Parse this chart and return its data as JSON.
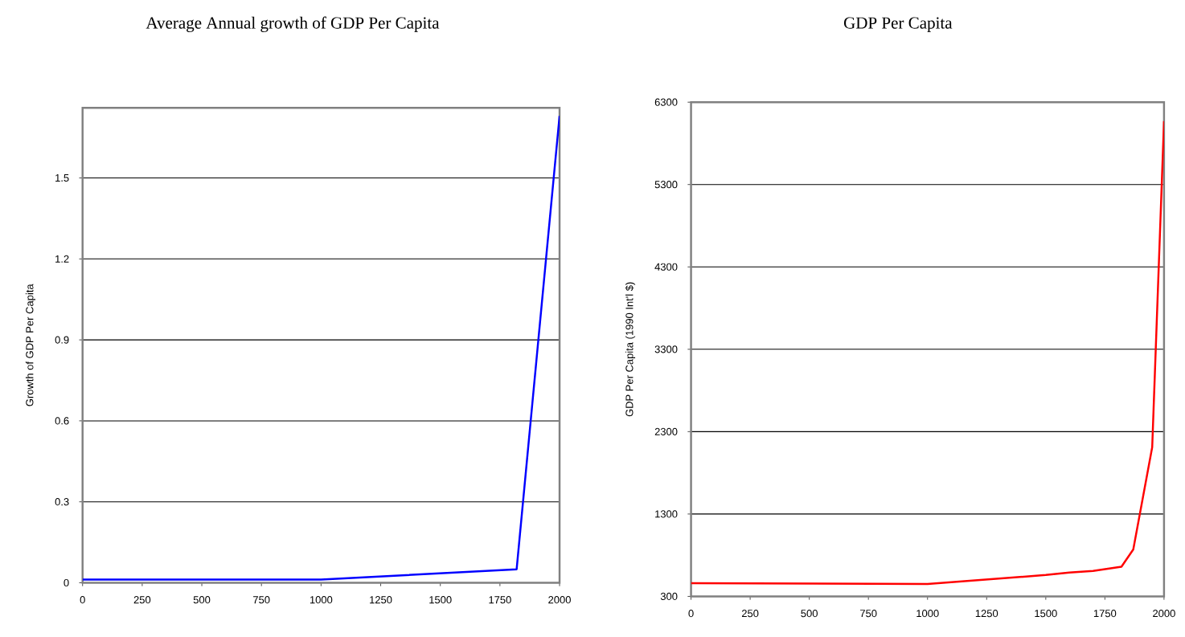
{
  "chart_data": [
    {
      "type": "line",
      "title": "Average Annual growth of GDP Per Capita",
      "ylabel": "Growth of GDP Per Capita",
      "color": "#0000ff",
      "grid": "y",
      "x": [
        0,
        1000,
        1820,
        2000
      ],
      "values": [
        0.012,
        0.012,
        0.05,
        1.73
      ],
      "xlim": [
        0,
        2000
      ],
      "xticks": [
        0,
        250,
        500,
        750,
        1000,
        1250,
        1500,
        1750,
        2000
      ],
      "ylim": [
        0,
        1.76
      ],
      "yticks": [
        0,
        0.3,
        0.6,
        0.9,
        1.2,
        1.5
      ]
    },
    {
      "type": "line",
      "title": "GDP Per Capita",
      "ylabel": "GDP Per Capita (1990 Int'l $)",
      "color": "#ff0000",
      "grid": "y",
      "x": [
        0,
        1000,
        1500,
        1600,
        1700,
        1820,
        1870,
        1950,
        2000
      ],
      "values": [
        460,
        450,
        560,
        590,
        610,
        660,
        870,
        2110,
        6070
      ],
      "xlim": [
        0,
        2000
      ],
      "xticks": [
        0,
        250,
        500,
        750,
        1000,
        1250,
        1500,
        1750,
        2000
      ],
      "ylim": [
        300,
        6300
      ],
      "yticks": [
        300,
        1300,
        2300,
        3300,
        4300,
        5300,
        6300
      ]
    }
  ]
}
